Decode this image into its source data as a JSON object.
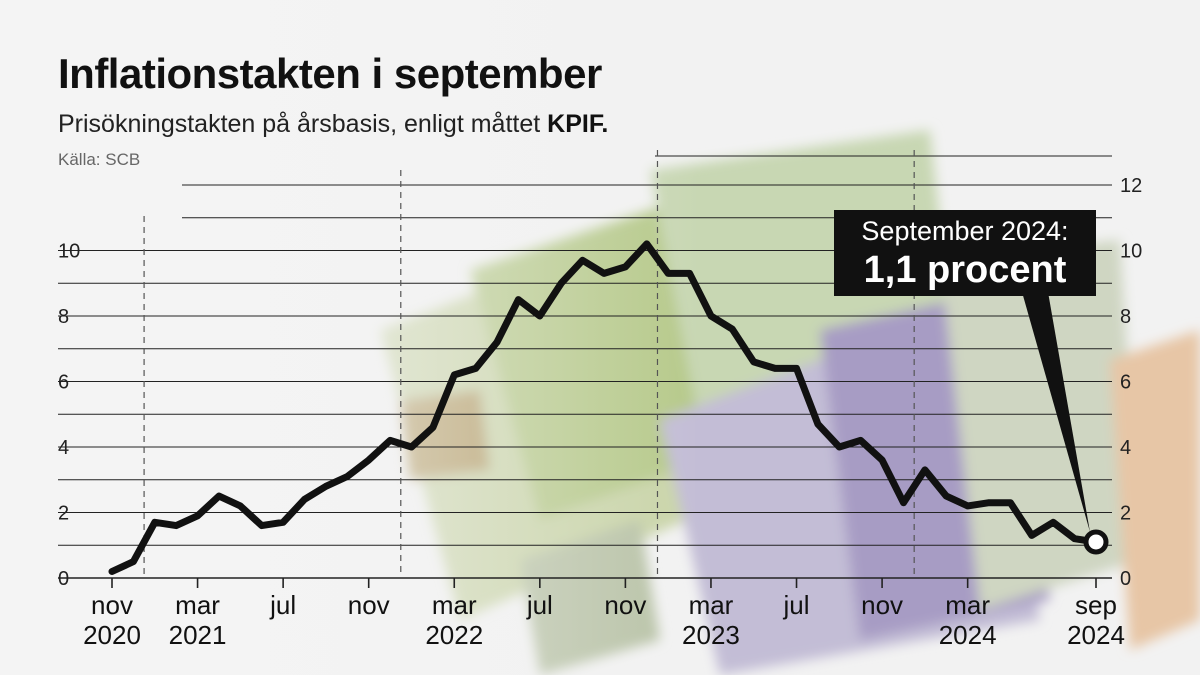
{
  "header": {
    "title": "Inflationstakten i september",
    "subtitle": "Prisökningstakten på årsbasis, enligt måttet",
    "subtitle_bold": "KPIF.",
    "source": "Källa: SCB"
  },
  "callout": {
    "line1": "September 2024:",
    "line2": "1,1 procent"
  },
  "colors": {
    "line": "#111111",
    "grid": "#222222",
    "text": "#222222"
  },
  "chart_data": {
    "type": "line",
    "title": "Inflationstakten i september",
    "ylim": [
      0,
      12
    ],
    "yticks_left": [
      0,
      2,
      4,
      6,
      8,
      10
    ],
    "yticks_right": [
      0,
      2,
      4,
      6,
      8,
      10,
      12
    ],
    "grid": true,
    "x_tick_labels": [
      {
        "month": "nov",
        "year": "2020"
      },
      {
        "month": "mar",
        "year": "2021"
      },
      {
        "month": "jul",
        "year": ""
      },
      {
        "month": "nov",
        "year": ""
      },
      {
        "month": "mar",
        "year": "2022"
      },
      {
        "month": "jul",
        "year": ""
      },
      {
        "month": "nov",
        "year": ""
      },
      {
        "month": "mar",
        "year": "2023"
      },
      {
        "month": "jul",
        "year": ""
      },
      {
        "month": "nov",
        "year": ""
      },
      {
        "month": "mar",
        "year": "2024"
      },
      {
        "month": "sep",
        "year": "2024"
      }
    ],
    "series": [
      {
        "name": "KPIF",
        "start": "2020-11",
        "values": [
          0.2,
          0.5,
          1.7,
          1.6,
          1.9,
          2.5,
          2.2,
          1.6,
          1.7,
          2.4,
          2.8,
          3.1,
          3.6,
          4.2,
          4.0,
          4.6,
          6.2,
          6.4,
          7.2,
          8.5,
          8.0,
          9.0,
          9.7,
          9.3,
          9.5,
          10.2,
          9.3,
          9.3,
          8.0,
          7.6,
          6.6,
          6.4,
          6.4,
          4.7,
          4.0,
          4.2,
          3.6,
          2.3,
          3.3,
          2.5,
          2.2,
          2.3,
          2.3,
          1.3,
          1.7,
          1.2,
          1.1
        ],
        "highlight": {
          "label": "September 2024",
          "value": 1.1
        }
      }
    ]
  }
}
